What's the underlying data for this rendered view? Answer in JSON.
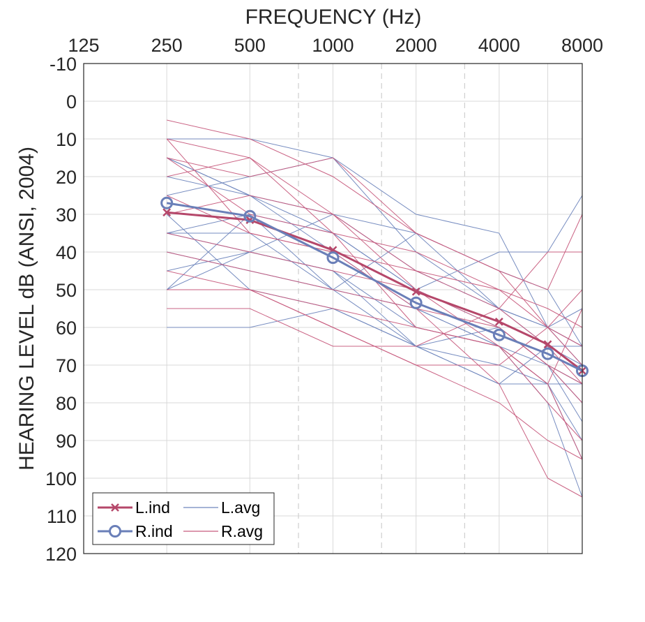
{
  "chart_data": {
    "type": "line",
    "xlabel": "FREQUENCY (Hz)",
    "ylabel": "HEARING LEVEL dB (ANSI, 2004)",
    "x_axis_position": "top",
    "x_scale": "log2",
    "xlim": [
      125,
      8000
    ],
    "x_ticks": [
      125,
      250,
      500,
      1000,
      2000,
      4000,
      8000
    ],
    "x_tick_labels": [
      "125",
      "250",
      "500",
      "1000",
      "2000",
      "4000",
      "8000"
    ],
    "x_minor_dashed_gridlines": [
      750,
      1500,
      3000
    ],
    "x_minor_solid_gridlines": [
      6000
    ],
    "ylim": [
      -10,
      120
    ],
    "y_reversed": true,
    "y_ticks": [
      -10,
      0,
      10,
      20,
      30,
      40,
      50,
      60,
      70,
      80,
      90,
      100,
      110,
      120
    ],
    "y_tick_labels": [
      "-10",
      "0",
      "10",
      "20",
      "30",
      "40",
      "50",
      "60",
      "70",
      "80",
      "90",
      "100",
      "110",
      "120"
    ],
    "grid": true,
    "legend_position": "bottom-left",
    "frequencies": [
      250,
      500,
      1000,
      2000,
      4000,
      6000,
      8000
    ],
    "colors": {
      "left": "#b5476a",
      "right": "#6a7fb8",
      "left_thin": "#c75b7d",
      "right_thin": "#6f86bd",
      "grid": "#d9d9d9",
      "axis": "#262626"
    },
    "legend": [
      {
        "label": "L.ind",
        "style": "thick-x",
        "color_key": "left"
      },
      {
        "label": "L.avg",
        "style": "thin",
        "color_key": "right_thin"
      },
      {
        "label": "R.ind",
        "style": "thick-o",
        "color_key": "right"
      },
      {
        "label": "R.avg",
        "style": "thin",
        "color_key": "left_thin"
      }
    ],
    "series": [
      {
        "name": "L.ind",
        "style": "thick-x",
        "color_key": "left",
        "x": [
          250,
          500,
          1000,
          2000,
          4000,
          6000,
          8000
        ],
        "y": [
          29.5,
          31.5,
          39.5,
          50.5,
          58.5,
          64.5,
          71.5
        ]
      },
      {
        "name": "R.ind",
        "style": "thick-o",
        "color_key": "right",
        "x": [
          250,
          500,
          1000,
          2000,
          4000,
          6000,
          8000
        ],
        "y": [
          27,
          30.5,
          41.5,
          53.5,
          62,
          67,
          71.5
        ]
      }
    ],
    "individual_audiograms_left": [
      [
        10,
        10,
        15,
        30,
        35,
        60,
        70
      ],
      [
        15,
        25,
        40,
        55,
        65,
        70,
        85
      ],
      [
        35,
        35,
        50,
        55,
        65,
        75,
        95
      ],
      [
        20,
        25,
        30,
        45,
        55,
        60,
        65
      ],
      [
        25,
        20,
        15,
        40,
        55,
        60,
        55
      ],
      [
        40,
        45,
        50,
        65,
        75,
        75,
        90
      ],
      [
        35,
        30,
        35,
        50,
        60,
        70,
        80
      ],
      [
        50,
        40,
        45,
        60,
        65,
        80,
        105
      ],
      [
        30,
        50,
        55,
        65,
        60,
        70,
        75
      ],
      [
        60,
        60,
        55,
        65,
        70,
        75,
        75
      ],
      [
        45,
        40,
        30,
        35,
        45,
        50,
        65
      ],
      [
        15,
        25,
        35,
        50,
        40,
        40,
        25
      ],
      [
        35,
        40,
        45,
        65,
        75,
        65,
        70
      ],
      [
        50,
        30,
        50,
        35,
        55,
        65,
        65
      ]
    ],
    "individual_audiograms_right": [
      [
        5,
        10,
        20,
        35,
        45,
        60,
        70
      ],
      [
        10,
        15,
        30,
        50,
        60,
        70,
        80
      ],
      [
        15,
        30,
        35,
        60,
        65,
        75,
        95
      ],
      [
        25,
        35,
        40,
        55,
        75,
        100,
        105
      ],
      [
        30,
        25,
        30,
        45,
        50,
        55,
        60
      ],
      [
        40,
        45,
        50,
        55,
        60,
        70,
        75
      ],
      [
        50,
        50,
        60,
        70,
        80,
        90,
        95
      ],
      [
        55,
        55,
        65,
        65,
        55,
        40,
        40
      ],
      [
        35,
        40,
        45,
        50,
        65,
        80,
        90
      ],
      [
        20,
        15,
        35,
        40,
        50,
        60,
        50
      ],
      [
        45,
        50,
        55,
        60,
        65,
        75,
        55
      ],
      [
        15,
        20,
        15,
        35,
        45,
        50,
        30
      ],
      [
        10,
        35,
        40,
        45,
        55,
        65,
        75
      ],
      [
        50,
        50,
        60,
        70,
        70,
        60,
        65
      ]
    ]
  }
}
